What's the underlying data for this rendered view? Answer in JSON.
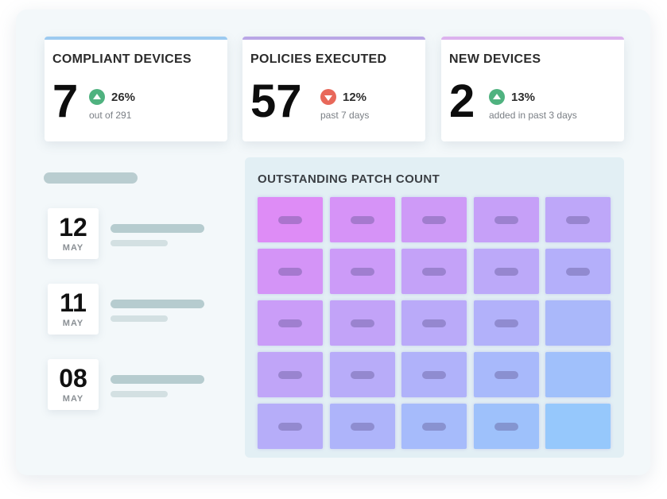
{
  "stats": [
    {
      "title": "COMPLIANT DEVICES",
      "value": "7",
      "trend": "up",
      "trend_icon": "arrow-up-icon",
      "percent": "26%",
      "subtext": "out of 291",
      "accent": "#9ccaf0"
    },
    {
      "title": "POLICIES EXECUTED",
      "value": "57",
      "trend": "down",
      "trend_icon": "arrow-down-icon",
      "percent": "12%",
      "subtext": "past 7 days",
      "accent": "#b9a6e6"
    },
    {
      "title": "NEW DEVICES",
      "value": "2",
      "trend": "up",
      "trend_icon": "arrow-up-icon",
      "percent": "13%",
      "subtext": "added in past 3 days",
      "accent": "#dcb2ee"
    }
  ],
  "colors": {
    "up": "#4fb27f",
    "down": "#e8685a"
  },
  "schedule": [
    {
      "day": "12",
      "month": "MAY"
    },
    {
      "day": "11",
      "month": "MAY"
    },
    {
      "day": "08",
      "month": "MAY"
    }
  ],
  "patch_panel": {
    "title": "OUTSTANDING PATCH COUNT",
    "rows": 5,
    "cols": 5,
    "cell_has_pill": [
      [
        true,
        true,
        true,
        true,
        true
      ],
      [
        true,
        true,
        true,
        true,
        true
      ],
      [
        true,
        true,
        true,
        true,
        false
      ],
      [
        true,
        true,
        true,
        true,
        false
      ],
      [
        true,
        true,
        true,
        true,
        false
      ]
    ]
  }
}
